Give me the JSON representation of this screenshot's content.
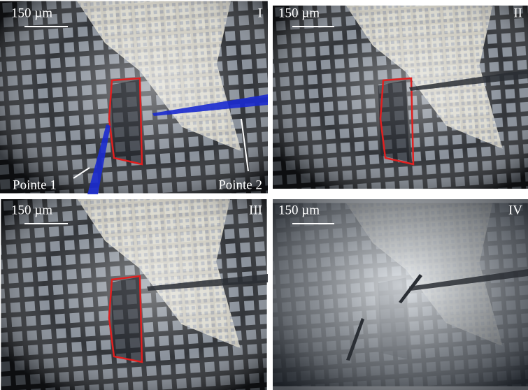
{
  "panels": [
    {
      "label": "I",
      "scale": "150 µm",
      "annotations": [
        "Pointe 1",
        "Pointe 2"
      ]
    },
    {
      "label": "II",
      "scale": "150 µm"
    },
    {
      "label": "III",
      "scale": "150 µm"
    },
    {
      "label": "IV",
      "scale": "150 µm"
    }
  ]
}
